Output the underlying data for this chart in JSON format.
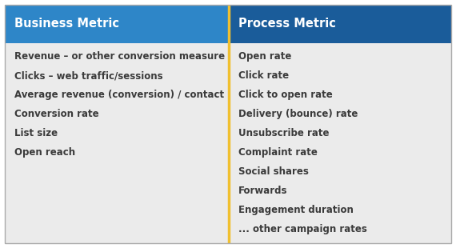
{
  "col1_header": "Business Metric",
  "col2_header": "Process Metric",
  "col1_items": [
    "Revenue – or other conversion measure",
    "Clicks – web traffic/sessions",
    "Average revenue (conversion) / contact",
    "Conversion rate",
    "List size",
    "Open reach"
  ],
  "col2_items": [
    "Open rate",
    "Click rate",
    "Click to open rate",
    "Delivery (bounce) rate",
    "Unsubscribe rate",
    "Complaint rate",
    "Social shares",
    "Forwards",
    "Engagement duration",
    "... other campaign rates"
  ],
  "header_bg_left": "#2E86C8",
  "header_bg_right": "#1A5C9A",
  "header_text_color": "#FFFFFF",
  "body_bg_color": "#EBEBEB",
  "body_text_color": "#3A3A3A",
  "divider_color": "#F0C030",
  "border_color": "#AAAAAA",
  "header_fontsize": 10.5,
  "body_fontsize": 8.5,
  "col_split": 0.502
}
